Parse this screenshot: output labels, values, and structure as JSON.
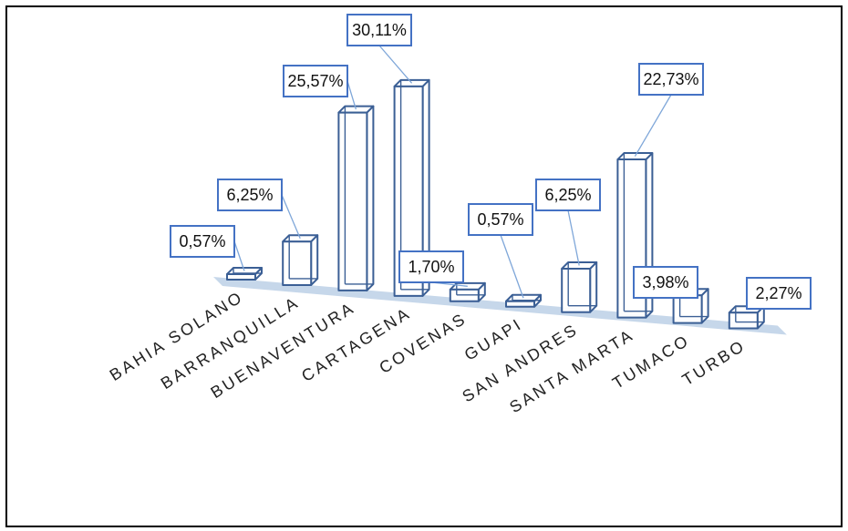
{
  "chart_data": {
    "type": "bar",
    "categories": [
      "BAHIA SOLANO",
      "BARRANQUILLA",
      "BUENAVENTURA",
      "CARTAGENA",
      "COVENAS",
      "GUAPI",
      "SAN ANDRES",
      "SANTA MARTA",
      "TUMACO",
      "TURBO"
    ],
    "values": [
      0.57,
      6.25,
      25.57,
      30.11,
      1.7,
      0.57,
      6.25,
      22.73,
      3.98,
      2.27
    ],
    "data_labels": [
      "0,57%",
      "6,25%",
      "25,57%",
      "30,11%",
      "1,70%",
      "0,57%",
      "6,25%",
      "22,73%",
      "3,98%",
      "2,27%"
    ],
    "bar_outline_color": "#3b5f95",
    "label_border_color": "#4472c4",
    "floor_color": "#bcd0e6",
    "style": "3d-wireframe-columns",
    "grid": false
  }
}
